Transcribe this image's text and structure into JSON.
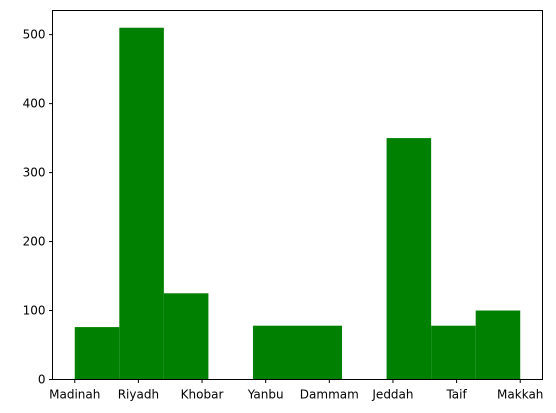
{
  "chart_data": {
    "type": "bar",
    "subtype": "histogram",
    "title": "",
    "xlabel": "",
    "ylabel": "",
    "color": "#008000",
    "categories": [
      "Madinah",
      "Riyadh",
      "Khobar",
      "Yanbu",
      "Dammam",
      "Jeddah",
      "Taif",
      "Makkah"
    ],
    "category_positions": [
      0,
      1,
      2,
      3,
      4,
      5,
      6,
      7
    ],
    "bins": [
      {
        "start": 0.0,
        "end": 0.7,
        "value": 76
      },
      {
        "start": 0.7,
        "end": 1.4,
        "value": 510
      },
      {
        "start": 1.4,
        "end": 2.1,
        "value": 125
      },
      {
        "start": 2.1,
        "end": 2.8,
        "value": 0
      },
      {
        "start": 2.8,
        "end": 3.5,
        "value": 78
      },
      {
        "start": 3.5,
        "end": 4.2,
        "value": 78
      },
      {
        "start": 4.2,
        "end": 4.9,
        "value": 0
      },
      {
        "start": 4.9,
        "end": 5.6,
        "value": 350
      },
      {
        "start": 5.6,
        "end": 6.3,
        "value": 78
      },
      {
        "start": 6.3,
        "end": 7.0,
        "value": 100
      }
    ],
    "xlim": [
      -0.35,
      7.35
    ],
    "ylim": [
      0,
      535
    ],
    "yticks": [
      0,
      100,
      200,
      300,
      400,
      500
    ],
    "grid": false,
    "legend": "none"
  }
}
